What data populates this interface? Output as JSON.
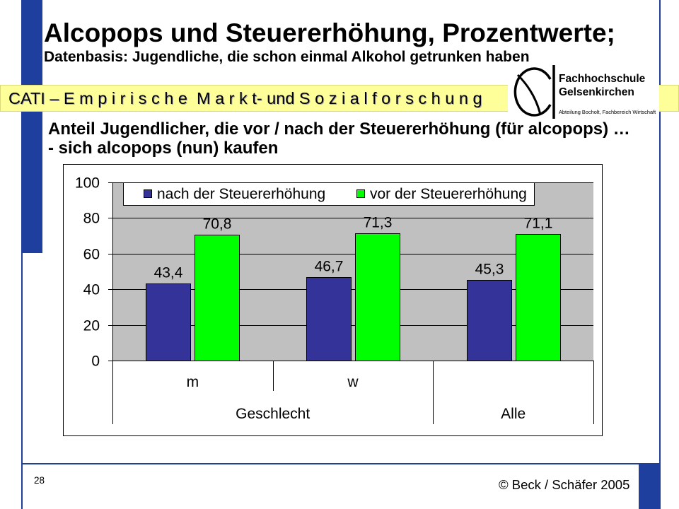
{
  "slide": {
    "title": "Alcopops und Steuererhöhung, Prozentwerte;",
    "subtitle": "Datenbasis: Jugendliche, die schon einmal Alkohol getrunken haben",
    "banner_text": "CATI – E m p i r i s c h e  M a r k t- und S o z i a l f o r s c h u n g",
    "question": [
      "Anteil Jugendlicher, die vor / nach der Steuererhöhung (für alcopops) …",
      "- sich alcopops (nun) kaufen"
    ],
    "page_number": "28",
    "copyright": "© Beck / Schäfer 2005"
  },
  "logo": {
    "icon": "fh-gelsenkirchen-logo-icon",
    "line1": "Fachhochschule",
    "line2": "Gelsenkirchen",
    "line3": "Abteilung Bocholt, Fachbereich Wirtschaft"
  },
  "colors": {
    "frame_blue": "#1f3f9f",
    "banner_yellow": "#ffff99",
    "plot_background": "#c0c0c0"
  },
  "chart_data": {
    "type": "bar",
    "categories": [
      "m",
      "w",
      "Alle"
    ],
    "category_groups": [
      {
        "label": "Geschlecht",
        "from": 0,
        "to": 1
      }
    ],
    "series": [
      {
        "name": "nach der Steuererhöhung",
        "color": "#333399",
        "values": [
          43.4,
          46.7,
          45.3
        ]
      },
      {
        "name": "vor der Steuererhöhung",
        "color": "#00ff00",
        "values": [
          70.8,
          71.3,
          71.1
        ]
      }
    ],
    "ylim": [
      0,
      100
    ],
    "yticks": [
      0,
      20,
      40,
      60,
      80,
      100
    ],
    "grid": true,
    "legend": "top",
    "data_labels": true
  }
}
